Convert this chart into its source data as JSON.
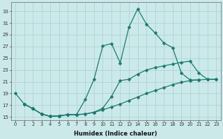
{
  "xlabel": "Humidex (Indice chaleur)",
  "bg_color": "#cce9ea",
  "grid_color": "#aad4d5",
  "line_color": "#1a7a6e",
  "xlim": [
    -0.5,
    23.5
  ],
  "ylim": [
    14.5,
    34.5
  ],
  "xticks": [
    0,
    1,
    2,
    3,
    4,
    5,
    6,
    7,
    8,
    9,
    10,
    11,
    12,
    13,
    14,
    15,
    16,
    17,
    18,
    19,
    20,
    21,
    22,
    23
  ],
  "yticks": [
    15,
    17,
    19,
    21,
    23,
    25,
    27,
    29,
    31,
    33
  ],
  "line1_x": [
    0,
    1,
    2,
    3,
    4,
    5,
    6,
    7,
    8,
    9,
    10,
    11,
    12,
    13,
    14,
    15,
    16,
    17,
    18,
    19,
    20,
    21,
    22,
    23
  ],
  "line1_y": [
    19.0,
    17.2,
    16.4,
    15.5,
    15.1,
    15.2,
    15.4,
    15.4,
    18.0,
    21.4,
    27.1,
    27.5,
    24.2,
    30.3,
    33.4,
    30.8,
    29.3,
    27.6,
    26.8,
    22.5,
    21.3,
    21.3,
    null,
    null
  ],
  "line2_x": [
    0,
    1,
    2,
    3,
    4,
    5,
    6,
    7,
    8,
    9,
    10,
    11,
    12,
    13,
    14,
    15,
    16,
    17,
    18,
    19,
    20,
    21,
    22,
    23
  ],
  "line2_y": [
    null,
    17.2,
    16.4,
    15.5,
    15.1,
    15.2,
    15.4,
    15.4,
    15.5,
    15.8,
    16.5,
    18.5,
    21.2,
    21.4,
    22.3,
    23.0,
    23.4,
    23.7,
    24.0,
    24.3,
    24.5,
    22.5,
    21.4,
    21.4
  ],
  "line3_x": [
    0,
    1,
    2,
    3,
    4,
    5,
    6,
    7,
    8,
    9,
    10,
    11,
    12,
    13,
    14,
    15,
    16,
    17,
    18,
    19,
    20,
    21,
    22,
    23
  ],
  "line3_y": [
    null,
    17.2,
    16.4,
    15.5,
    15.1,
    15.2,
    15.4,
    15.4,
    15.5,
    15.8,
    16.2,
    16.7,
    17.2,
    17.8,
    18.4,
    19.0,
    19.5,
    20.0,
    20.5,
    20.9,
    21.2,
    21.3,
    21.4,
    21.4
  ]
}
